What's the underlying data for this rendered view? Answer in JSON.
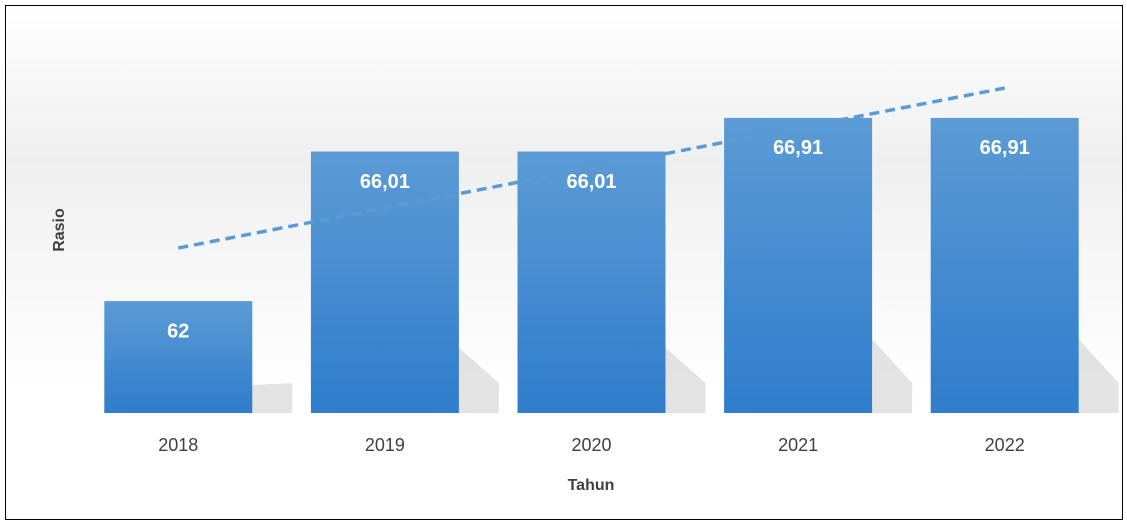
{
  "chart_data": {
    "type": "bar",
    "categories": [
      "2018",
      "2019",
      "2020",
      "2021",
      "2022"
    ],
    "values": [
      62,
      66.01,
      66.01,
      66.91,
      66.91
    ],
    "value_labels": [
      "62",
      "66,01",
      "66,01",
      "66,91",
      "66,91"
    ],
    "color": "#3d87d1",
    "ylim": [
      59,
      69
    ],
    "x_label": "Tahun",
    "y_label": "Rasio",
    "trendline": true,
    "trendline_color": "#5b9bd5"
  }
}
